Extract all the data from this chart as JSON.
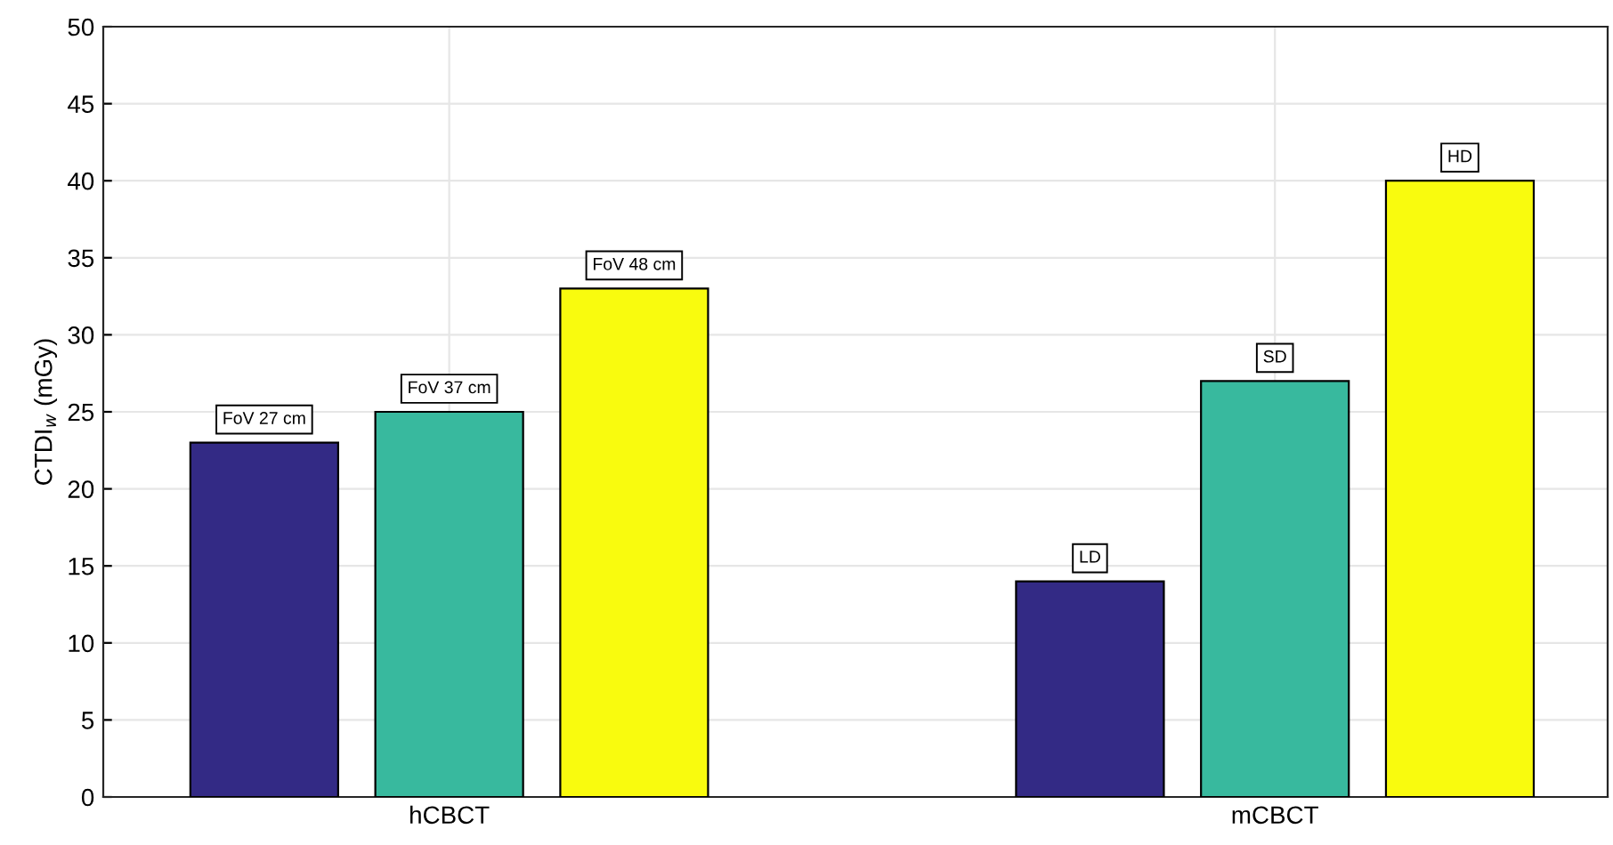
{
  "chart_data": {
    "type": "bar",
    "ylabel": "CTDI$_{w}$ (mGy)",
    "categories": [
      "hCBCT",
      "mCBCT"
    ],
    "series": [
      {
        "color": "#332a85",
        "values": [
          23,
          14
        ],
        "value_labels": [
          "FoV 27 cm",
          "LD"
        ]
      },
      {
        "color": "#38b99e",
        "values": [
          25,
          27
        ],
        "value_labels": [
          "FoV 37 cm",
          "SD"
        ]
      },
      {
        "color": "#f9fb0e",
        "values": [
          33,
          40
        ],
        "value_labels": [
          "FoV 48 cm",
          "HD"
        ]
      }
    ],
    "ylim": [
      0,
      50
    ],
    "yticks": [
      0,
      5,
      10,
      15,
      20,
      25,
      30,
      35,
      40,
      45,
      50
    ],
    "grid": true,
    "legend": false
  }
}
